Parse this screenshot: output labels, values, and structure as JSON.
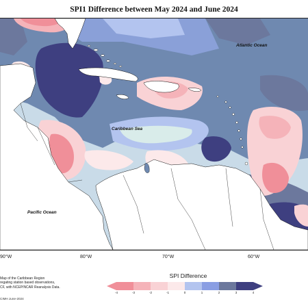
{
  "title": "SPI1 Difference between May 2024 and June 2024",
  "labels": {
    "atlantic": "Atlantic Ocean",
    "caribbean": "Caribbean Sea",
    "pacific": "Pacific Ocean"
  },
  "longitudes": [
    "90°W",
    "80°W",
    "70°W",
    "60°W"
  ],
  "source_note": [
    "Map of the Caribbean Region",
    "regating station based observations,",
    "CF, with NCEP/NCAR Reanalysis Data."
  ],
  "credit": "CIMH June-2024",
  "legend": {
    "title": "SPI Difference",
    "ticks": [
      "-4",
      "-3",
      "-2",
      "-1",
      "0",
      "1",
      "2",
      "3",
      "4"
    ],
    "colors": [
      "#f08f99",
      "#f5b3b9",
      "#f9d2d5",
      "#fce9ea",
      "#d9ecea",
      "#b3c4ef",
      "#8a9ee3",
      "#6c789d",
      "#3e3f80"
    ]
  }
}
